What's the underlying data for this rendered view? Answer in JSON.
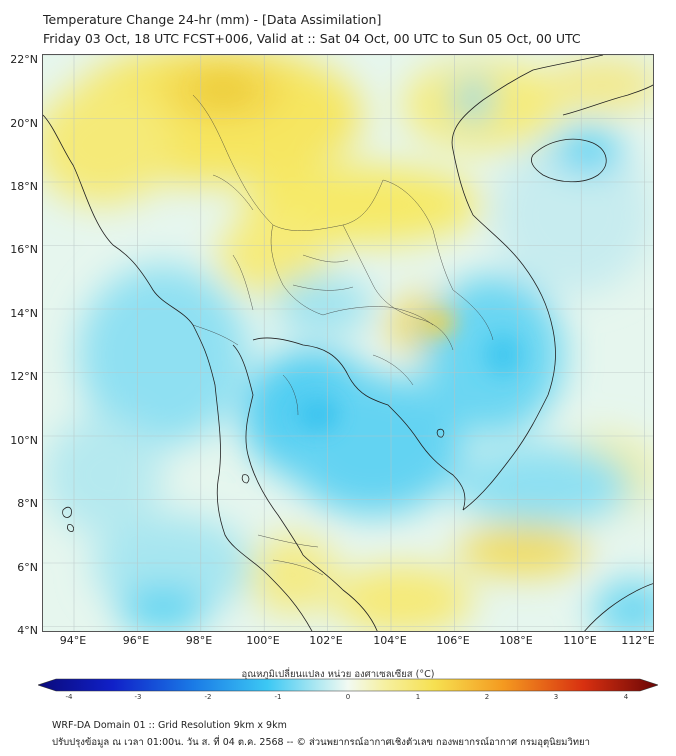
{
  "title": "Temperature Change 24-hr (mm) - [Data Assimilation]",
  "subtitle": "Friday 03 Oct, 18 UTC FCST+006, Valid at :: Sat 04 Oct, 00 UTC to Sun 05 Oct, 00 UTC",
  "lat_labels": [
    "22°N",
    "20°N",
    "18°N",
    "16°N",
    "14°N",
    "12°N",
    "10°N",
    "8°N",
    "6°N",
    "4°N"
  ],
  "lon_labels": [
    "94°E",
    "96°E",
    "98°E",
    "100°E",
    "102°E",
    "104°E",
    "106°E",
    "108°E",
    "110°E",
    "112°E"
  ],
  "colorbar": {
    "title": "อุณหภูมิเปลี่ยนแปลง หน่วย องศาเซลเซียส (°C)",
    "ticks": [
      "-4",
      "-3",
      "-2",
      "-1",
      "0",
      "1",
      "2",
      "3",
      "4"
    ],
    "min": -4,
    "max": 4
  },
  "footer": {
    "line1": "WRF-DA Domain 01 :: Grid Resolution 9km x 9km",
    "line2": "ปรับปรุงข้อมูล ณ เวลา 01:00น. วัน ส. ที่ 04 ต.ค. 2568 -- © ส่วนพยากรณ์อากาศเชิงตัวเลข กองพยากรณ์อากาศ กรมอุตุนิยมวิทยา"
  },
  "colors": {
    "yellow": "#f7ee6a",
    "cyan": "#56d3f3",
    "border": "#222222",
    "grid": "#c8c8c8"
  }
}
